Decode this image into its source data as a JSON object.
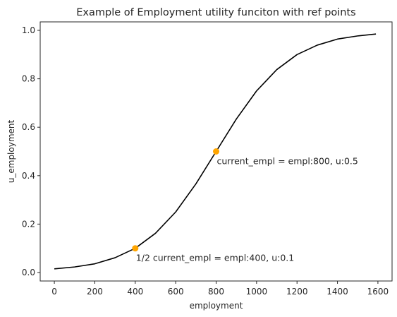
{
  "chart_data": {
    "type": "line",
    "title": "Example of Employment utility funciton with ref points",
    "xlabel": "employment",
    "ylabel": "u_employment",
    "xlim": [
      -70,
      1670
    ],
    "ylim": [
      -0.035,
      1.035
    ],
    "xticks": [
      0,
      200,
      400,
      600,
      800,
      1000,
      1200,
      1400,
      1600
    ],
    "yticks": [
      0.0,
      0.2,
      0.4,
      0.6,
      0.8,
      1.0
    ],
    "xtick_labels": [
      "0",
      "200",
      "400",
      "600",
      "800",
      "1000",
      "1200",
      "1400",
      "1600"
    ],
    "ytick_labels": [
      "0.0",
      "0.2",
      "0.4",
      "0.6",
      "0.8",
      "1.0"
    ],
    "grid": false,
    "series": [
      {
        "style": "line",
        "color": "#000000",
        "x": [
          0,
          100,
          200,
          300,
          400,
          500,
          600,
          700,
          800,
          900,
          1000,
          1100,
          1200,
          1300,
          1400,
          1500,
          1590
        ],
        "y": [
          0.015,
          0.023,
          0.036,
          0.061,
          0.1,
          0.162,
          0.25,
          0.366,
          0.5,
          0.634,
          0.75,
          0.838,
          0.9,
          0.939,
          0.964,
          0.977,
          0.985
        ]
      },
      {
        "style": "points",
        "color": "#ffa500",
        "x": [
          400,
          800
        ],
        "y": [
          0.1,
          0.5
        ]
      }
    ],
    "annotations": [
      {
        "text": "current_empl = empl:800, u:0.5",
        "x": 800,
        "y": 0.5
      },
      {
        "text": "1/2 current_empl = empl:400, u:0.1",
        "x": 400,
        "y": 0.1
      }
    ]
  }
}
